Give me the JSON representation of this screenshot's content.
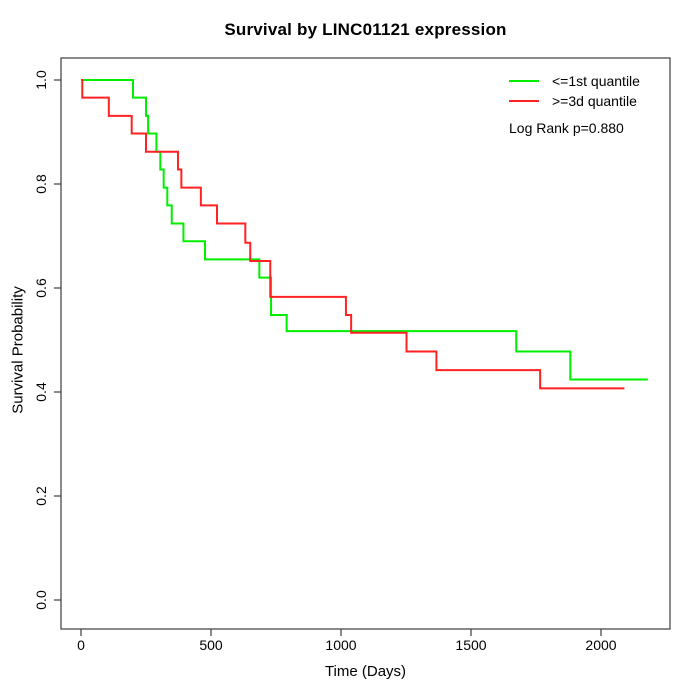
{
  "figure": {
    "title": "Survival by LINC01121 expression",
    "x_label": "Time (Days)",
    "y_label": "Survival Probability"
  },
  "legend": {
    "entries": [
      {
        "label": "<=1st quantile",
        "color": "#00ee00"
      },
      {
        "label": ">=3d quantile",
        "color": "#ff2222"
      }
    ],
    "stat_text": "Log Rank p=0.880"
  },
  "chart_data": {
    "type": "line",
    "subtype": "kaplan-meier-step",
    "title": "Survival by LINC01121 expression",
    "xlabel": "Time (Days)",
    "ylabel": "Survival Probability",
    "xlim": [
      0,
      2265
    ],
    "ylim": [
      0,
      1
    ],
    "x_ticks": [
      "0",
      "500",
      "1000",
      "1500",
      "2000"
    ],
    "y_ticks": [
      "0.0",
      "0.2",
      "0.4",
      "0.6",
      "0.8",
      "1.0"
    ],
    "grid": false,
    "legend_position": "top-right",
    "annotation": "Log Rank p=0.880",
    "axis_color": "#3c3c3c",
    "series": [
      {
        "name": "<=1st quantile",
        "color": "#00ee00",
        "end_time": 2180,
        "steps": [
          [
            0,
            1.0
          ],
          [
            200,
            0.966
          ],
          [
            250,
            0.931
          ],
          [
            258,
            0.897
          ],
          [
            290,
            0.862
          ],
          [
            305,
            0.828
          ],
          [
            318,
            0.793
          ],
          [
            332,
            0.759
          ],
          [
            349,
            0.724
          ],
          [
            394,
            0.69
          ],
          [
            477,
            0.655
          ],
          [
            686,
            0.62
          ],
          [
            731,
            0.548
          ],
          [
            791,
            0.517
          ],
          [
            1674,
            0.478
          ],
          [
            1882,
            0.424
          ]
        ]
      },
      {
        "name": ">=3d quantile",
        "color": "#ff2222",
        "end_time": 2090,
        "steps": [
          [
            0,
            1.0
          ],
          [
            5,
            0.966
          ],
          [
            107,
            0.931
          ],
          [
            195,
            0.897
          ],
          [
            250,
            0.862
          ],
          [
            373,
            0.828
          ],
          [
            386,
            0.793
          ],
          [
            461,
            0.759
          ],
          [
            523,
            0.724
          ],
          [
            632,
            0.687
          ],
          [
            651,
            0.652
          ],
          [
            728,
            0.583
          ],
          [
            1019,
            0.548
          ],
          [
            1039,
            0.514
          ],
          [
            1252,
            0.478
          ],
          [
            1367,
            0.442
          ],
          [
            1766,
            0.407
          ]
        ]
      }
    ]
  }
}
